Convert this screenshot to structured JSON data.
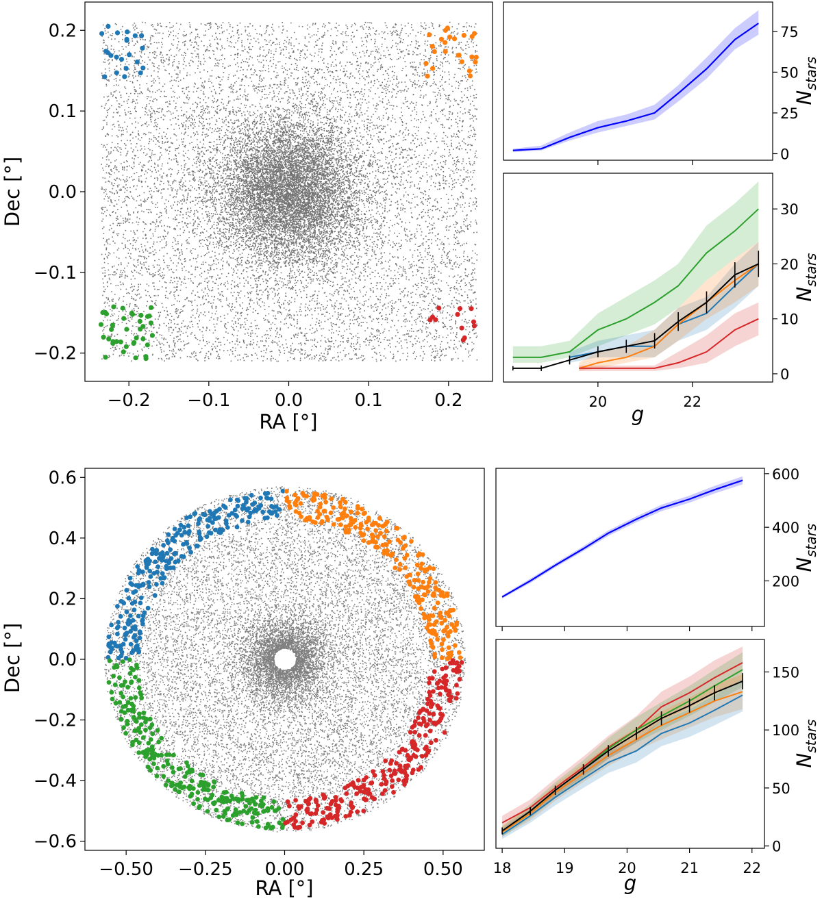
{
  "colors": {
    "blue_tab": "#1f77b4",
    "orange_tab": "#ff7f0e",
    "green_tab": "#2ca02c",
    "red_tab": "#d62728",
    "total_line": "#0000ff",
    "mean_line": "#000000",
    "stars": "#000000"
  },
  "chart_data": [
    {
      "id": "top-scatter",
      "type": "scatter",
      "title": "",
      "xlabel": "RA [°]",
      "ylabel": "Dec [°]",
      "xlim": [
        -0.255,
        0.255
      ],
      "ylim": [
        -0.235,
        0.235
      ],
      "xticks": [
        -0.2,
        -0.1,
        0.0,
        0.1,
        0.2
      ],
      "xticklabels": [
        "−0.2",
        "−0.1",
        "0.0",
        "0.1",
        "0.2"
      ],
      "yticks": [
        -0.2,
        -0.1,
        0.0,
        0.1,
        0.2
      ],
      "yticklabels": [
        "−0.2",
        "−0.1",
        "0.0",
        "0.1",
        "0.2"
      ],
      "field": {
        "shape": "square",
        "xrange": [
          -0.235,
          0.235
        ],
        "yrange": [
          -0.21,
          0.21
        ],
        "core": "dense concentration at (0, 0)"
      },
      "groups": [
        {
          "name": "blue",
          "region": "top-left corner",
          "x_range": [
            -0.235,
            -0.17
          ],
          "y_range": [
            0.14,
            0.205
          ],
          "n": 22
        },
        {
          "name": "orange",
          "region": "top-right corner",
          "x_range": [
            0.17,
            0.235
          ],
          "y_range": [
            0.14,
            0.205
          ],
          "n": 24
        },
        {
          "name": "green",
          "region": "bottom-left corner",
          "x_range": [
            -0.235,
            -0.17
          ],
          "y_range": [
            -0.21,
            -0.14
          ],
          "n": 38
        },
        {
          "name": "red",
          "region": "bottom-right corner",
          "x_range": [
            0.17,
            0.235
          ],
          "y_range": [
            -0.19,
            -0.14
          ],
          "n": 12
        }
      ]
    },
    {
      "id": "top-total",
      "type": "line",
      "title": "",
      "xlabel": "",
      "ylabel": "N_stars",
      "xlim": [
        18.0,
        23.7
      ],
      "ylim": [
        -4,
        93
      ],
      "yticks": [
        0,
        25,
        50,
        75
      ],
      "yticklabels": [
        "0",
        "25",
        "50",
        "75"
      ],
      "series": [
        {
          "name": "total",
          "x": [
            18.2,
            18.8,
            19.4,
            20.0,
            20.6,
            21.2,
            21.7,
            22.3,
            22.9,
            23.4
          ],
          "y": [
            2,
            3,
            10,
            16,
            20,
            25,
            37,
            52,
            70,
            80
          ],
          "band": {
            "lower": [
              1,
              2,
              8,
              13,
              17,
              21,
              32,
              46,
              64,
              73
            ],
            "upper": [
              3,
              5,
              13,
              20,
              24,
              30,
              42,
              59,
              77,
              88
            ]
          }
        }
      ]
    },
    {
      "id": "top-groups",
      "type": "line",
      "title": "",
      "xlabel": "g",
      "ylabel": "N_stars",
      "xlim": [
        18.0,
        23.7
      ],
      "ylim": [
        -1.5,
        36.5
      ],
      "xticks": [
        20,
        22
      ],
      "xticklabels": [
        "20",
        "22"
      ],
      "yticks": [
        0,
        10,
        20,
        30
      ],
      "yticklabels": [
        "0",
        "10",
        "20",
        "30"
      ],
      "series": [
        {
          "name": "green",
          "x": [
            18.2,
            18.8,
            19.4,
            20.0,
            20.6,
            21.2,
            21.7,
            22.3,
            22.9,
            23.4
          ],
          "y": [
            3,
            3,
            4,
            8,
            10,
            13,
            16,
            22,
            26,
            30
          ],
          "band": {
            "lower": [
              2,
              2,
              3,
              5,
              7,
              9,
              12,
              17,
              21,
              24
            ],
            "upper": [
              5,
              5,
              6,
              11,
              14,
              17,
              20,
              27,
              31,
              35
            ]
          }
        },
        {
          "name": "blue",
          "x": [
            19.4,
            20.0,
            20.6,
            21.2,
            21.7,
            22.3,
            22.9,
            23.4
          ],
          "y": [
            3,
            4,
            5,
            5,
            9,
            11,
            16,
            20
          ],
          "band": {
            "lower": [
              2,
              3,
              3,
              3,
              6,
              8,
              12,
              16
            ],
            "upper": [
              4,
              6,
              7,
              8,
              12,
              14,
              20,
              24
            ]
          }
        },
        {
          "name": "orange",
          "x": [
            19.6,
            20.0,
            20.6,
            21.2,
            21.7,
            22.3,
            22.9,
            23.4
          ],
          "y": [
            1,
            2,
            3,
            5,
            9,
            13,
            17,
            20
          ],
          "band": {
            "lower": [
              0.5,
              1,
              2,
              3,
              6,
              10,
              13,
              16
            ],
            "upper": [
              2,
              4,
              5,
              8,
              12,
              17,
              21,
              24
            ]
          }
        },
        {
          "name": "red",
          "x": [
            19.6,
            20.0,
            20.6,
            21.2,
            21.7,
            22.3,
            22.9,
            23.4
          ],
          "y": [
            1,
            1,
            1,
            1,
            2,
            4,
            8,
            10
          ],
          "band": {
            "lower": [
              0.5,
              0.5,
              0.5,
              0.5,
              1,
              2,
              5,
              7
            ],
            "upper": [
              1.5,
              1.5,
              1.5,
              1.5,
              4,
              7,
              11,
              13
            ]
          }
        },
        {
          "name": "mean",
          "x": [
            18.2,
            18.8,
            19.4,
            20.0,
            20.6,
            21.2,
            21.7,
            22.3,
            22.9,
            23.4
          ],
          "y": [
            1,
            1,
            2.5,
            4,
            5,
            6,
            9.5,
            13,
            18,
            20
          ],
          "err": [
            0.4,
            0.5,
            0.8,
            1.0,
            1.2,
            1.4,
            1.7,
            2.0,
            2.3,
            2.4
          ]
        }
      ]
    },
    {
      "id": "bottom-scatter",
      "type": "scatter",
      "title": "",
      "xlabel": "RA [°]",
      "ylabel": "Dec [°]",
      "xlim": [
        -0.63,
        0.63
      ],
      "ylim": [
        -0.63,
        0.63
      ],
      "xticks": [
        -0.5,
        -0.25,
        0.0,
        0.25,
        0.5
      ],
      "xticklabels": [
        "−0.50",
        "−0.25",
        "0.00",
        "0.25",
        "0.50"
      ],
      "yticks": [
        -0.6,
        -0.4,
        -0.2,
        0.0,
        0.2,
        0.4,
        0.6
      ],
      "yticklabels": [
        "−0.6",
        "−0.4",
        "−0.2",
        "0.0",
        "0.2",
        "0.4",
        "0.6"
      ],
      "field": {
        "shape": "disk",
        "radius": 0.57,
        "hole_radius": 0.035,
        "core": "overdensity around (0, 0)"
      },
      "groups": [
        {
          "name": "blue",
          "region": "annulus upper-left quadrant",
          "r_range": [
            0.46,
            0.56
          ],
          "angle_range_deg": [
            90,
            180
          ],
          "n": 260
        },
        {
          "name": "orange",
          "region": "annulus upper-right quadrant",
          "r_range": [
            0.46,
            0.56
          ],
          "angle_range_deg": [
            0,
            90
          ],
          "n": 260
        },
        {
          "name": "green",
          "region": "annulus lower-left quadrant",
          "r_range": [
            0.46,
            0.56
          ],
          "angle_range_deg": [
            180,
            270
          ],
          "n": 260
        },
        {
          "name": "red",
          "region": "annulus lower-right quadrant",
          "r_range": [
            0.46,
            0.56
          ],
          "angle_range_deg": [
            270,
            360
          ],
          "n": 260
        }
      ]
    },
    {
      "id": "bottom-total",
      "type": "line",
      "title": "",
      "xlabel": "",
      "ylabel": "N_stars",
      "xlim": [
        17.9,
        22.2
      ],
      "ylim": [
        30,
        620
      ],
      "yticks": [
        200,
        400,
        600
      ],
      "yticklabels": [
        "200",
        "400",
        "600"
      ],
      "series": [
        {
          "name": "total",
          "x": [
            18.0,
            18.45,
            18.85,
            19.3,
            19.7,
            20.15,
            20.55,
            21.0,
            21.4,
            21.85
          ],
          "y": [
            140,
            200,
            258,
            320,
            378,
            430,
            472,
            505,
            540,
            575
          ],
          "band": {
            "lower": [
              134,
              192,
              250,
              311,
              368,
              419,
              460,
              492,
              526,
              560
            ],
            "upper": [
              146,
              208,
              266,
              329,
              388,
              441,
              484,
              518,
              554,
              590
            ]
          }
        }
      ]
    },
    {
      "id": "bottom-groups",
      "type": "line",
      "title": "",
      "xlabel": "g",
      "ylabel": "N_stars",
      "xlim": [
        17.9,
        22.2
      ],
      "ylim": [
        -2,
        178
      ],
      "xticks": [
        18,
        19,
        20,
        21,
        22
      ],
      "xticklabels": [
        "18",
        "19",
        "20",
        "21",
        "22"
      ],
      "yticks": [
        0,
        50,
        100,
        150
      ],
      "yticklabels": [
        "0",
        "50",
        "100",
        "150"
      ],
      "series": [
        {
          "name": "red",
          "x": [
            18.0,
            18.45,
            18.85,
            19.3,
            19.7,
            20.15,
            20.55,
            21.0,
            21.4,
            21.85
          ],
          "y": [
            20,
            33,
            50,
            68,
            85,
            100,
            120,
            132,
            145,
            158
          ],
          "band": {
            "lower": [
              15,
              27,
              43,
              60,
              75,
              89,
              108,
              119,
              131,
              143
            ],
            "upper": [
              26,
              40,
              58,
              77,
              95,
              112,
              133,
              146,
              160,
              172
            ]
          }
        },
        {
          "name": "green",
          "x": [
            18.0,
            18.45,
            18.85,
            19.3,
            19.7,
            20.15,
            20.55,
            21.0,
            21.4,
            21.85
          ],
          "y": [
            12,
            30,
            48,
            66,
            84,
            100,
            112,
            125,
            138,
            152
          ],
          "band": {
            "lower": [
              8,
              24,
              41,
              58,
              75,
              89,
              100,
              112,
              124,
              137
            ],
            "upper": [
              17,
              36,
              55,
              74,
              93,
              111,
              124,
              138,
              152,
              167
            ]
          }
        },
        {
          "name": "orange",
          "x": [
            18.0,
            18.45,
            18.85,
            19.3,
            19.7,
            20.15,
            20.55,
            21.0,
            21.4,
            21.85
          ],
          "y": [
            12,
            28,
            46,
            63,
            78,
            92,
            104,
            115,
            125,
            133
          ],
          "band": {
            "lower": [
              8,
              22,
              39,
              55,
              69,
              82,
              92,
              102,
              111,
              118
            ],
            "upper": [
              17,
              34,
              53,
              71,
              87,
              102,
              116,
              128,
              139,
              148
            ]
          }
        },
        {
          "name": "blue",
          "x": [
            18.0,
            18.45,
            18.85,
            19.3,
            19.7,
            20.15,
            20.55,
            21.0,
            21.4,
            21.85
          ],
          "y": [
            10,
            26,
            42,
            58,
            72,
            82,
            97,
            106,
            117,
            130
          ],
          "band": {
            "lower": [
              6,
              20,
              35,
              50,
              63,
              72,
              86,
              94,
              104,
              116
            ],
            "upper": [
              15,
              32,
              49,
              66,
              81,
              92,
              108,
              118,
              130,
              144
            ]
          }
        },
        {
          "name": "mean",
          "x": [
            18.0,
            18.45,
            18.85,
            19.3,
            19.7,
            20.15,
            20.55,
            21.0,
            21.4,
            21.85
          ],
          "y": [
            13,
            30,
            48,
            66,
            82,
            97,
            110,
            121,
            132,
            142
          ],
          "err": [
            3,
            3.5,
            4,
            4.5,
            5,
            5.5,
            6,
            6,
            6.5,
            7
          ]
        }
      ]
    }
  ]
}
